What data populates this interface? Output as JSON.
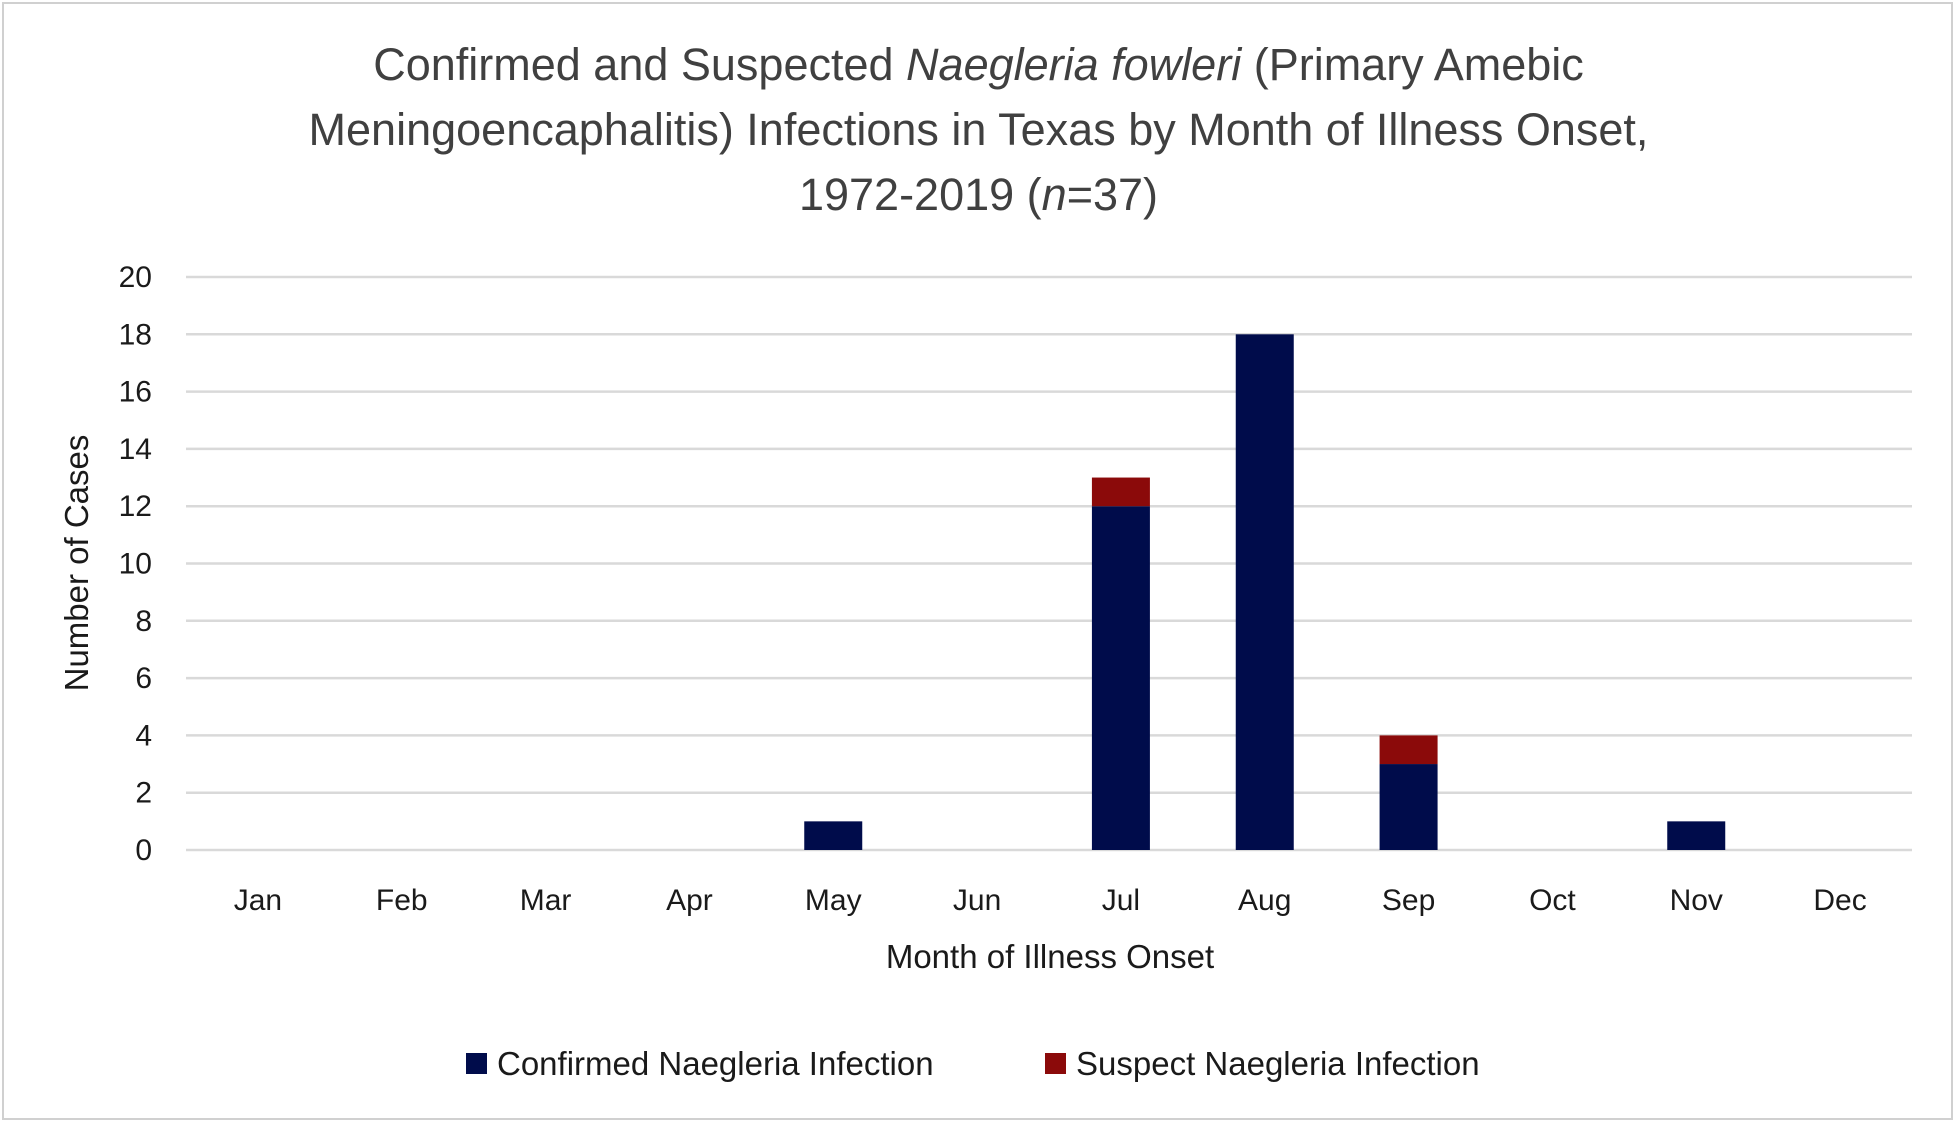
{
  "chart_data": {
    "type": "bar",
    "stacked": true,
    "title": {
      "line1_pre": "Confirmed and Suspected ",
      "line1_italic": "Naegleria fowleri",
      "line1_post": " (Primary Amebic",
      "line2": "Meningoencaphalitis) Infections in Texas by Month of Illness Onset,",
      "line3_pre": "1972-2019 (",
      "line3_italic": "n",
      "line3_post": "=37)"
    },
    "xlabel": "Month of Illness Onset",
    "ylabel": "Number of Cases",
    "ylim": [
      0,
      20
    ],
    "yticks": [
      "0",
      "2",
      "4",
      "6",
      "8",
      "10",
      "12",
      "14",
      "16",
      "18",
      "20"
    ],
    "categories": [
      "Jan",
      "Feb",
      "Mar",
      "Apr",
      "May",
      "Jun",
      "Jul",
      "Aug",
      "Sep",
      "Oct",
      "Nov",
      "Dec"
    ],
    "series": [
      {
        "name": "Confirmed Naegleria Infection",
        "color": "#000c4b",
        "values": [
          0,
          0,
          0,
          0,
          1,
          0,
          12,
          18,
          3,
          0,
          1,
          0
        ]
      },
      {
        "name": "Suspect Naegleria Infection",
        "color": "#8b0a0a",
        "values": [
          0,
          0,
          0,
          0,
          0,
          0,
          1,
          0,
          1,
          0,
          0,
          0
        ]
      }
    ],
    "grid": true,
    "legend_position": "bottom"
  }
}
